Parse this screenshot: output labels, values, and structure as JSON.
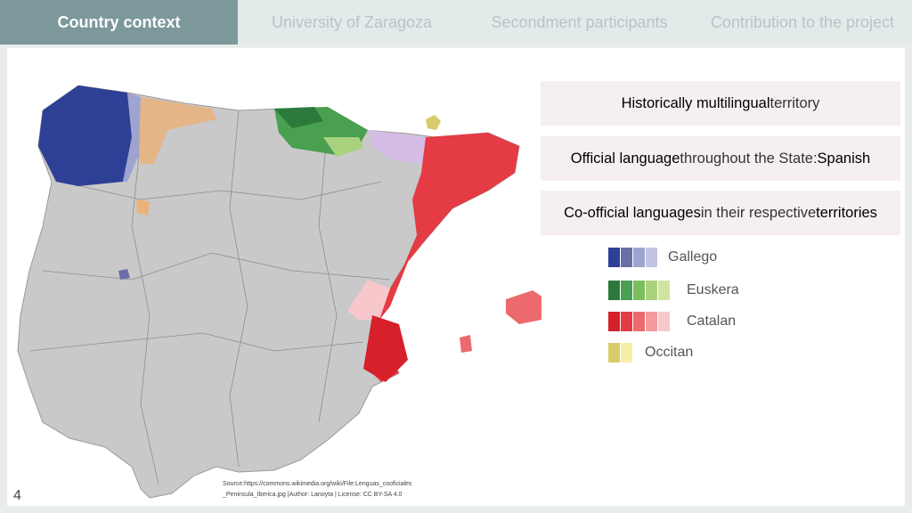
{
  "tabs": [
    {
      "label": "Country context",
      "active": true
    },
    {
      "label": "University of Zaragoza",
      "active": false
    },
    {
      "label": "Secondment participants",
      "active": false
    },
    {
      "label": "Contribution to the project",
      "active": false
    }
  ],
  "boxes": {
    "box1": {
      "strong": "Historically multilingual",
      "rest": " territory"
    },
    "box2": {
      "strong": "Official language",
      "mid": " throughout the State: ",
      "end": "Spanish"
    },
    "box3": {
      "strong": "Co-official languages",
      "mid": " in their respective ",
      "end": "territories"
    }
  },
  "legend": [
    {
      "label": "Gallego",
      "colors": [
        "#2e3f96",
        "#6b6fa8",
        "#9fa3d0",
        "#c4c3e4"
      ]
    },
    {
      "label": "Euskera",
      "colors": [
        "#2c7a3b",
        "#48a050",
        "#7cbd5e",
        "#a8d27e",
        "#cfe49f"
      ]
    },
    {
      "label": "Catalan",
      "colors": [
        "#d6202c",
        "#e43b44",
        "#ec6a6e",
        "#f29aa0",
        "#f8c7cc"
      ]
    },
    {
      "label": "Occitan",
      "colors": [
        "#d9cb6a",
        "#f6f0a6"
      ]
    }
  ],
  "page_number": "4",
  "source": {
    "line1": "Source:https://commons.wikimedia.org/wiki/File:Lenguas_cooficiales",
    "line2": "_Peninsula_Iberica.jpg |Author: Lanoyta | License: CC BY-SA 4.0"
  }
}
